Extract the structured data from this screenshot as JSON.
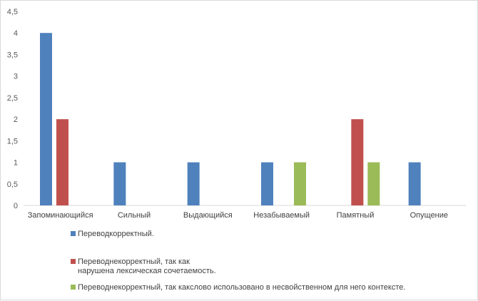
{
  "chart_data": {
    "type": "bar",
    "categories": [
      "Запоминающийся",
      "Сильный",
      "Выдающийся",
      "Незабываемый",
      "Памятный",
      "Опущение"
    ],
    "series": [
      {
        "name": "Переводкорректный.",
        "color": "#4f81bd",
        "values": [
          4,
          1,
          1,
          1,
          0,
          1
        ]
      },
      {
        "name": "Переводнекорректный, так как нарушена лексическая сочетаемость.",
        "color": "#c0504d",
        "values": [
          2,
          0,
          0,
          0,
          2,
          0
        ]
      },
      {
        "name": "Переводнекорректный, так какслово использовано в несвойственном для него контексте.",
        "color": "#9bbb59",
        "values": [
          0,
          0,
          0,
          1,
          1,
          0
        ]
      }
    ],
    "y_ticks": [
      "0",
      "0,5",
      "1",
      "1,5",
      "2",
      "2,5",
      "3",
      "3,5",
      "4",
      "4,5"
    ],
    "ylim": [
      0,
      4.5
    ],
    "grid": false,
    "legend_position": "bottom-left"
  }
}
